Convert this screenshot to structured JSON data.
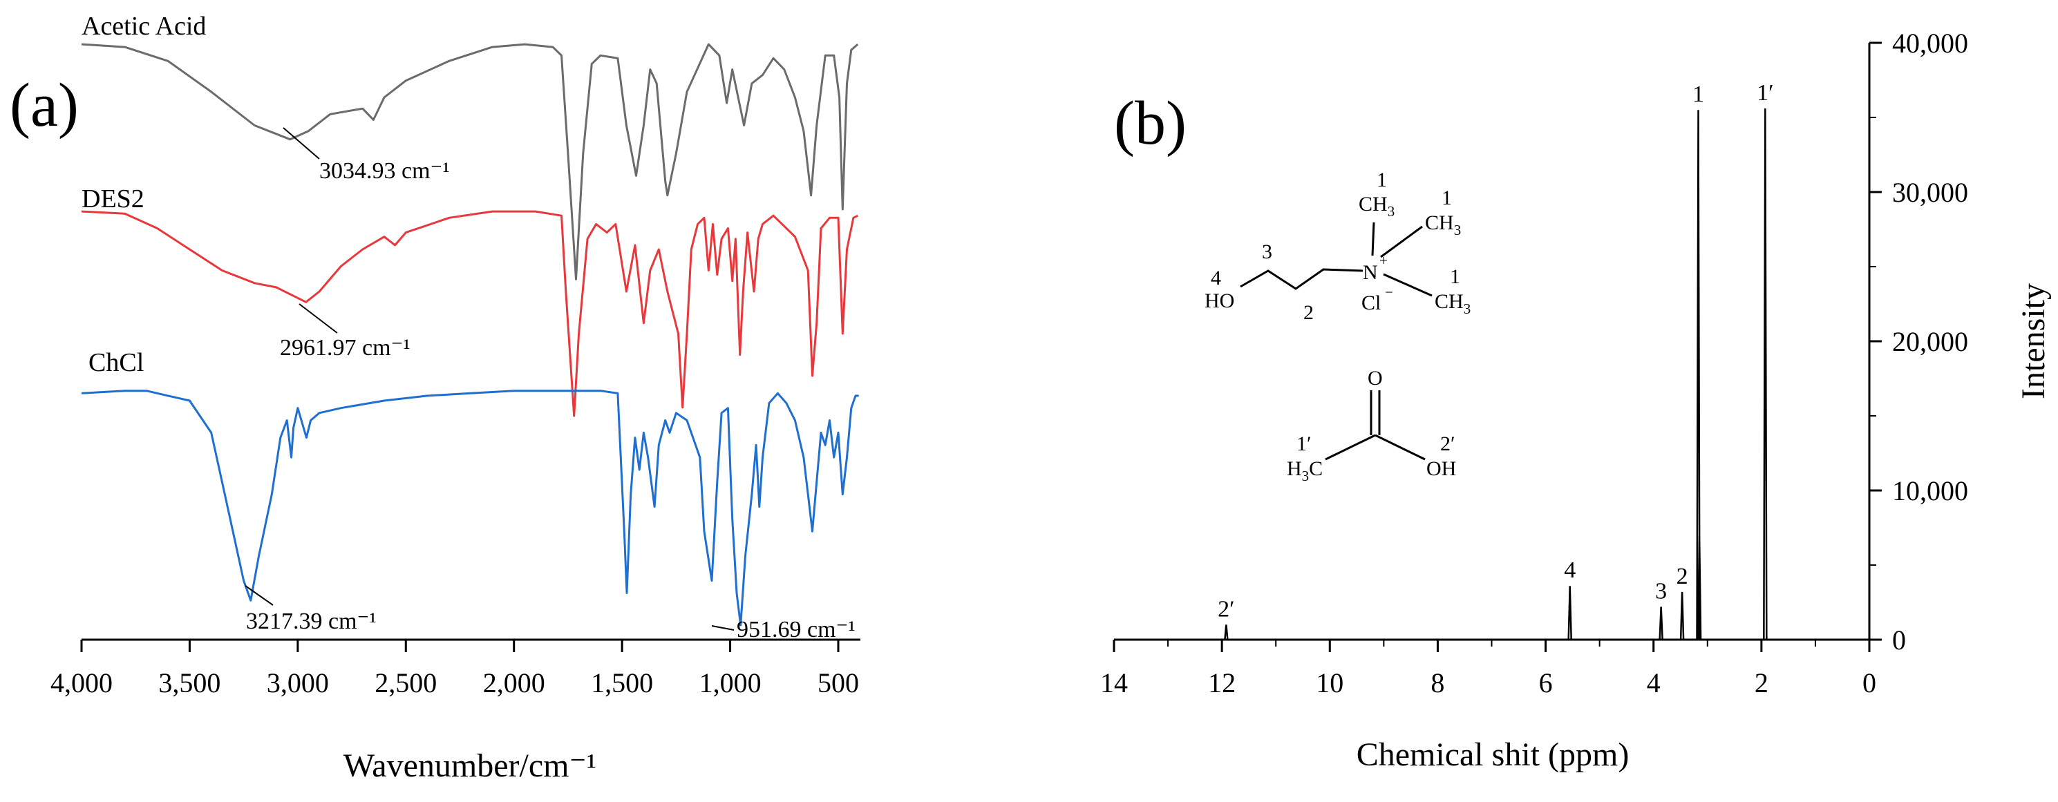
{
  "chart_data": [
    {
      "panel": "(a)",
      "type": "line",
      "xlabel": "Wavenumber/cm⁻¹",
      "ylabel": "",
      "xlim": [
        4000,
        400
      ],
      "x_reversed": true,
      "x_ticks": [
        4000,
        3500,
        3000,
        2500,
        2000,
        1500,
        1000,
        500
      ],
      "x_tick_labels": [
        "4,000",
        "3,500",
        "3,000",
        "2,500",
        "2,000",
        "1,500",
        "1,000",
        "500"
      ],
      "y_axis_shown": false,
      "grid": false,
      "series": [
        {
          "name": "Acetic Acid",
          "color": "#6b6b6b",
          "points": [
            [
              4000,
              99
            ],
            [
              3800,
              98
            ],
            [
              3600,
              93
            ],
            [
              3400,
              82
            ],
            [
              3200,
              70
            ],
            [
              3034.93,
              65
            ],
            [
              2950,
              68
            ],
            [
              2850,
              74
            ],
            [
              2700,
              76
            ],
            [
              2650,
              72
            ],
            [
              2600,
              80
            ],
            [
              2500,
              86
            ],
            [
              2300,
              93
            ],
            [
              2100,
              98
            ],
            [
              1950,
              99
            ],
            [
              1820,
              98
            ],
            [
              1780,
              95
            ],
            [
              1750,
              60
            ],
            [
              1713,
              15
            ],
            [
              1680,
              60
            ],
            [
              1640,
              92
            ],
            [
              1600,
              95
            ],
            [
              1520,
              94
            ],
            [
              1480,
              70
            ],
            [
              1435,
              52
            ],
            [
              1400,
              70
            ],
            [
              1370,
              90
            ],
            [
              1340,
              85
            ],
            [
              1300,
              50
            ],
            [
              1290,
              45
            ],
            [
              1250,
              60
            ],
            [
              1200,
              82
            ],
            [
              1100,
              99
            ],
            [
              1050,
              95
            ],
            [
              1016,
              78
            ],
            [
              990,
              90
            ],
            [
              936,
              70
            ],
            [
              900,
              85
            ],
            [
              850,
              88
            ],
            [
              800,
              94
            ],
            [
              750,
              90
            ],
            [
              700,
              80
            ],
            [
              660,
              68
            ],
            [
              626,
              45
            ],
            [
              600,
              70
            ],
            [
              560,
              95
            ],
            [
              520,
              95
            ],
            [
              495,
              80
            ],
            [
              480,
              40
            ],
            [
              460,
              85
            ],
            [
              440,
              97
            ],
            [
              410,
              99
            ]
          ]
        },
        {
          "name": "DES2",
          "color": "#e8383c",
          "points": [
            [
              4000,
              98
            ],
            [
              3800,
              97
            ],
            [
              3650,
              90
            ],
            [
              3500,
              80
            ],
            [
              3350,
              70
            ],
            [
              3200,
              64
            ],
            [
              3100,
              62
            ],
            [
              2961.97,
              55
            ],
            [
              2900,
              60
            ],
            [
              2800,
              72
            ],
            [
              2700,
              80
            ],
            [
              2600,
              86
            ],
            [
              2550,
              82
            ],
            [
              2500,
              88
            ],
            [
              2300,
              95
            ],
            [
              2100,
              98
            ],
            [
              1900,
              98
            ],
            [
              1780,
              96
            ],
            [
              1760,
              60
            ],
            [
              1722,
              1
            ],
            [
              1700,
              40
            ],
            [
              1660,
              85
            ],
            [
              1620,
              92
            ],
            [
              1570,
              88
            ],
            [
              1530,
              92
            ],
            [
              1480,
              60
            ],
            [
              1440,
              82
            ],
            [
              1400,
              45
            ],
            [
              1370,
              70
            ],
            [
              1330,
              80
            ],
            [
              1290,
              60
            ],
            [
              1240,
              40
            ],
            [
              1220,
              5
            ],
            [
              1200,
              40
            ],
            [
              1180,
              80
            ],
            [
              1150,
              92
            ],
            [
              1120,
              95
            ],
            [
              1100,
              70
            ],
            [
              1080,
              92
            ],
            [
              1060,
              68
            ],
            [
              1040,
              85
            ],
            [
              1010,
              90
            ],
            [
              990,
              65
            ],
            [
              975,
              85
            ],
            [
              955,
              30
            ],
            [
              940,
              60
            ],
            [
              920,
              88
            ],
            [
              890,
              60
            ],
            [
              870,
              85
            ],
            [
              850,
              92
            ],
            [
              800,
              96
            ],
            [
              760,
              92
            ],
            [
              700,
              86
            ],
            [
              640,
              70
            ],
            [
              620,
              20
            ],
            [
              600,
              45
            ],
            [
              580,
              90
            ],
            [
              540,
              95
            ],
            [
              500,
              95
            ],
            [
              480,
              40
            ],
            [
              460,
              80
            ],
            [
              430,
              95
            ],
            [
              410,
              96
            ]
          ]
        },
        {
          "name": "ChCl",
          "color": "#1f6fd0",
          "points": [
            [
              4000,
              96
            ],
            [
              3800,
              97
            ],
            [
              3700,
              97
            ],
            [
              3600,
              95
            ],
            [
              3500,
              93
            ],
            [
              3400,
              80
            ],
            [
              3350,
              60
            ],
            [
              3300,
              40
            ],
            [
              3250,
              20
            ],
            [
              3217.39,
              12
            ],
            [
              3180,
              30
            ],
            [
              3120,
              55
            ],
            [
              3080,
              78
            ],
            [
              3050,
              85
            ],
            [
              3030,
              70
            ],
            [
              3020,
              82
            ],
            [
              3000,
              90
            ],
            [
              2960,
              78
            ],
            [
              2940,
              85
            ],
            [
              2900,
              88
            ],
            [
              2800,
              90
            ],
            [
              2600,
              93
            ],
            [
              2400,
              95
            ],
            [
              2200,
              96
            ],
            [
              2000,
              97
            ],
            [
              1800,
              97
            ],
            [
              1600,
              97
            ],
            [
              1520,
              96
            ],
            [
              1490,
              40
            ],
            [
              1478,
              15
            ],
            [
              1460,
              55
            ],
            [
              1440,
              78
            ],
            [
              1420,
              65
            ],
            [
              1400,
              80
            ],
            [
              1380,
              70
            ],
            [
              1350,
              50
            ],
            [
              1330,
              75
            ],
            [
              1300,
              85
            ],
            [
              1280,
              80
            ],
            [
              1250,
              88
            ],
            [
              1200,
              85
            ],
            [
              1140,
              70
            ],
            [
              1120,
              40
            ],
            [
              1085,
              20
            ],
            [
              1060,
              60
            ],
            [
              1040,
              88
            ],
            [
              1010,
              90
            ],
            [
              990,
              45
            ],
            [
              970,
              15
            ],
            [
              951.69,
              2
            ],
            [
              930,
              30
            ],
            [
              900,
              55
            ],
            [
              880,
              75
            ],
            [
              865,
              50
            ],
            [
              850,
              70
            ],
            [
              820,
              92
            ],
            [
              780,
              96
            ],
            [
              740,
              92
            ],
            [
              700,
              85
            ],
            [
              660,
              70
            ],
            [
              640,
              55
            ],
            [
              620,
              40
            ],
            [
              600,
              60
            ],
            [
              580,
              80
            ],
            [
              560,
              75
            ],
            [
              540,
              85
            ],
            [
              520,
              70
            ],
            [
              500,
              80
            ],
            [
              480,
              55
            ],
            [
              460,
              70
            ],
            [
              440,
              90
            ],
            [
              420,
              95
            ],
            [
              405,
              95
            ]
          ]
        }
      ],
      "annotations": [
        {
          "series": "Acetic Acid",
          "x": 3034.93,
          "text": "3034.93 cm⁻¹"
        },
        {
          "series": "DES2",
          "x": 2961.97,
          "text": "2961.97 cm⁻¹"
        },
        {
          "series": "ChCl",
          "x": 3217.39,
          "text": "3217.39 cm⁻¹"
        },
        {
          "series": "ChCl",
          "x": 951.69,
          "text": "951.69 cm⁻¹"
        }
      ]
    },
    {
      "panel": "(b)",
      "type": "line",
      "xlabel": "Chemical shit (ppm)",
      "ylabel": "Intensity",
      "xlim": [
        14,
        0
      ],
      "x_reversed": true,
      "ylim": [
        0,
        40000
      ],
      "x_ticks": [
        14,
        12,
        10,
        8,
        6,
        4,
        2,
        0
      ],
      "x_tick_labels": [
        "14",
        "12",
        "10",
        "8",
        "6",
        "4",
        "2",
        "0"
      ],
      "y_ticks": [
        0,
        10000,
        20000,
        30000,
        40000
      ],
      "y_tick_labels": [
        "0",
        "10,000",
        "20,000",
        "30,000",
        "40,000"
      ],
      "y_axis_side": "right",
      "grid": false,
      "series": [
        {
          "name": "",
          "color": "#000000",
          "peaks": [
            {
              "x": 11.92,
              "y": 1000,
              "label": "2′"
            },
            {
              "x": 5.55,
              "y": 3600,
              "label": "4"
            },
            {
              "x": 3.86,
              "y": 2200,
              "label": "3"
            },
            {
              "x": 3.47,
              "y": 3200,
              "label": "2"
            },
            {
              "x": 3.17,
              "y": 35500,
              "label": "1"
            },
            {
              "x": 3.15,
              "y": 7000,
              "label": ""
            },
            {
              "x": 1.93,
              "y": 35600,
              "label": "1′"
            }
          ]
        }
      ]
    }
  ],
  "structures": {
    "choline_chloride": {
      "atoms": [
        "HO",
        "N",
        "CH",
        "Cl"
      ],
      "subscript": "3",
      "superscript_plus": "+",
      "superscript_minus": "−",
      "numbers": [
        "4",
        "3",
        "2",
        "1",
        "1",
        "1"
      ]
    },
    "acetic_acid": {
      "atoms": [
        "O",
        "OH",
        "H",
        "C"
      ],
      "subscript": "3",
      "numbers": [
        "1′",
        "2′"
      ]
    }
  }
}
